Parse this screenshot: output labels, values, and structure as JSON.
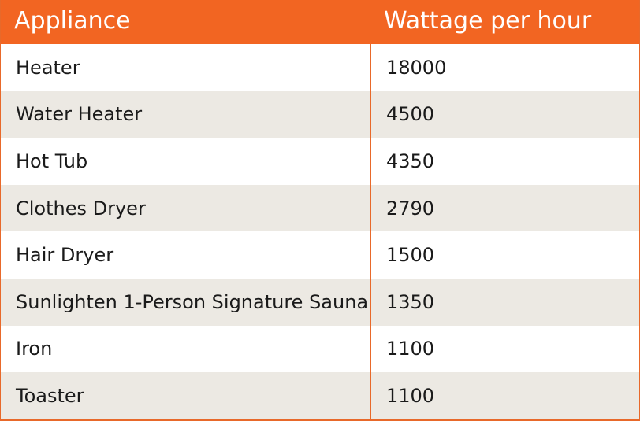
{
  "chart_data": {
    "type": "table",
    "columns": [
      "Appliance",
      "Wattage per hour"
    ],
    "rows": [
      {
        "appliance": "Heater",
        "wattage": "18000"
      },
      {
        "appliance": "Water Heater",
        "wattage": "4500"
      },
      {
        "appliance": "Hot Tub",
        "wattage": "4350"
      },
      {
        "appliance": "Clothes Dryer",
        "wattage": "2790"
      },
      {
        "appliance": "Hair Dryer",
        "wattage": "1500"
      },
      {
        "appliance": "Sunlighten 1-Person Signature Sauna",
        "wattage": "1350"
      },
      {
        "appliance": "Iron",
        "wattage": "1100"
      },
      {
        "appliance": "Toaster",
        "wattage": "1100"
      }
    ],
    "colors": {
      "header_bg": "#f26522",
      "header_text": "#ffffff",
      "row_alt_bg": "#ece9e3",
      "border": "#e8692a"
    }
  }
}
